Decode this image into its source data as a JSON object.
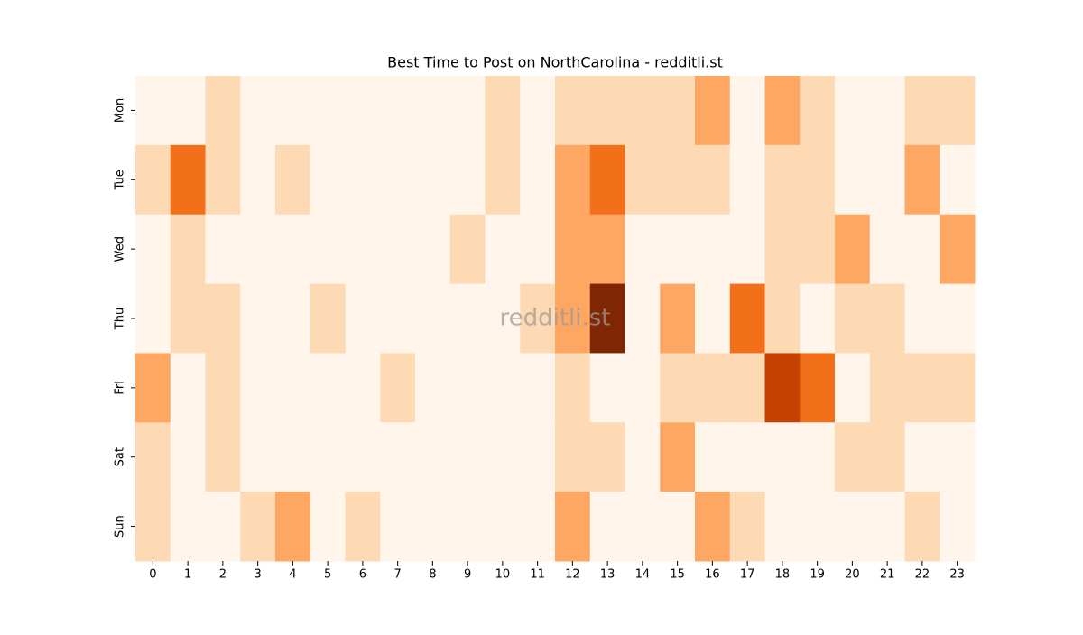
{
  "chart_data": {
    "type": "heatmap",
    "title": "Best Time to Post on NorthCarolina - redditli.st",
    "watermark": "redditli.st",
    "x": [
      0,
      1,
      2,
      3,
      4,
      5,
      6,
      7,
      8,
      9,
      10,
      11,
      12,
      13,
      14,
      15,
      16,
      17,
      18,
      19,
      20,
      21,
      22,
      23
    ],
    "y": [
      "Mon",
      "Tue",
      "Wed",
      "Thu",
      "Fri",
      "Sat",
      "Sun"
    ],
    "values": [
      [
        0,
        0,
        1,
        0,
        0,
        0,
        0,
        0,
        0,
        0,
        1,
        0,
        1,
        1,
        1,
        1,
        2,
        0,
        2,
        1,
        0,
        0,
        1,
        1
      ],
      [
        1,
        3,
        1,
        0,
        1,
        0,
        0,
        0,
        0,
        0,
        1,
        0,
        2,
        3,
        1,
        1,
        1,
        0,
        1,
        1,
        0,
        0,
        2,
        0
      ],
      [
        0,
        1,
        0,
        0,
        0,
        0,
        0,
        0,
        0,
        1,
        0,
        0,
        2,
        2,
        0,
        0,
        0,
        0,
        1,
        1,
        2,
        0,
        0,
        2
      ],
      [
        0,
        1,
        1,
        0,
        0,
        1,
        0,
        0,
        0,
        0,
        0,
        1,
        2,
        5,
        0,
        2,
        0,
        3,
        1,
        0,
        1,
        1,
        0,
        0
      ],
      [
        2,
        0,
        1,
        0,
        0,
        0,
        0,
        1,
        0,
        0,
        0,
        0,
        1,
        0,
        0,
        1,
        1,
        1,
        4,
        3,
        0,
        1,
        1,
        1
      ],
      [
        1,
        0,
        1,
        0,
        0,
        0,
        0,
        0,
        0,
        0,
        0,
        0,
        1,
        1,
        0,
        2,
        0,
        0,
        0,
        0,
        1,
        1,
        0,
        0
      ],
      [
        1,
        0,
        0,
        1,
        2,
        0,
        1,
        0,
        0,
        0,
        0,
        0,
        2,
        0,
        0,
        0,
        2,
        1,
        0,
        0,
        0,
        0,
        1,
        0
      ]
    ],
    "zlim": [
      0,
      5
    ],
    "colormap": [
      "#fff5eb",
      "#fdd9b4",
      "#fda762",
      "#f3701b",
      "#c54102",
      "#7f2704"
    ]
  }
}
